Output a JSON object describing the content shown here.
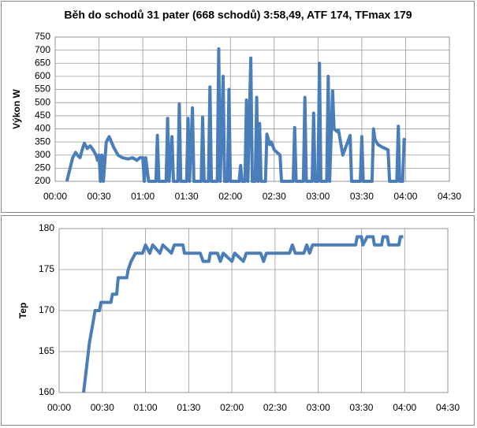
{
  "chart_data": [
    {
      "type": "line",
      "title": "Běh do schodů 31 pater (668 schodů) 3:58,49, ATF 174, TFmax 179",
      "y_label": "Výkon W",
      "color": "#4a7ebb",
      "grid": true,
      "x": [
        8,
        12,
        14,
        16,
        17,
        19,
        20,
        22,
        24,
        26,
        28,
        29,
        30,
        31,
        32,
        33,
        35,
        37,
        40,
        43,
        46,
        50,
        53,
        56,
        58,
        60,
        61,
        62,
        64,
        66,
        67,
        69,
        70,
        71,
        76,
        77,
        78,
        80,
        81,
        84,
        85,
        86,
        90,
        91,
        92,
        94,
        95,
        100,
        101,
        102,
        105,
        106,
        107,
        111,
        112,
        113,
        115,
        116,
        118,
        119,
        120,
        126,
        127,
        128,
        130,
        131,
        132,
        134,
        135,
        137,
        138,
        139,
        140,
        141,
        144,
        145,
        147,
        148,
        150,
        154,
        155,
        163,
        164,
        165,
        170,
        171,
        172,
        176,
        177,
        178,
        180,
        181,
        182,
        186,
        187,
        188,
        190,
        191,
        193,
        194,
        197,
        202,
        203,
        209,
        210,
        211,
        217,
        218,
        219,
        221,
        224,
        228,
        229,
        234,
        235,
        236,
        238,
        239,
        240
      ],
      "values": [
        200,
        290,
        310,
        295,
        290,
        330,
        345,
        325,
        335,
        320,
        300,
        280,
        300,
        200,
        300,
        200,
        350,
        370,
        330,
        300,
        290,
        285,
        290,
        280,
        290,
        290,
        200,
        290,
        200,
        200,
        200,
        200,
        375,
        200,
        200,
        440,
        200,
        370,
        200,
        200,
        495,
        200,
        200,
        440,
        200,
        480,
        200,
        200,
        445,
        200,
        200,
        560,
        200,
        200,
        705,
        200,
        600,
        200,
        200,
        550,
        200,
        200,
        260,
        200,
        200,
        510,
        200,
        670,
        200,
        200,
        520,
        200,
        420,
        200,
        200,
        380,
        340,
        350,
        320,
        300,
        200,
        200,
        405,
        200,
        200,
        520,
        200,
        200,
        460,
        200,
        200,
        650,
        200,
        200,
        600,
        200,
        545,
        400,
        390,
        395,
        300,
        375,
        200,
        200,
        370,
        200,
        200,
        400,
        360,
        340,
        330,
        320,
        200,
        200,
        410,
        200,
        200,
        360,
        355
      ],
      "xlim": [
        0,
        270
      ],
      "xticks": [
        {
          "value": 0,
          "label": "00:00"
        },
        {
          "value": 30,
          "label": "00:30"
        },
        {
          "value": 60,
          "label": "01:00"
        },
        {
          "value": 90,
          "label": "01:30"
        },
        {
          "value": 120,
          "label": "02:00"
        },
        {
          "value": 150,
          "label": "02:30"
        },
        {
          "value": 180,
          "label": "03:00"
        },
        {
          "value": 210,
          "label": "03:30"
        },
        {
          "value": 240,
          "label": "04:00"
        },
        {
          "value": 270,
          "label": "04:30"
        }
      ],
      "ylim": [
        200,
        750
      ],
      "yticks": [
        200,
        250,
        300,
        350,
        400,
        450,
        500,
        550,
        600,
        650,
        700,
        750
      ]
    },
    {
      "type": "line",
      "y_label": "Tep",
      "color": "#4a7ebb",
      "grid": true,
      "x": [
        17,
        19,
        21,
        23,
        25,
        28,
        29,
        36,
        37,
        40,
        41,
        47,
        48,
        50,
        53,
        58,
        60,
        63,
        65,
        70,
        72,
        78,
        80,
        86,
        87,
        98,
        100,
        104,
        105,
        110,
        112,
        114,
        120,
        122,
        128,
        130,
        140,
        142,
        144,
        160,
        162,
        164,
        170,
        172,
        174,
        176,
        206,
        207,
        210,
        211,
        214,
        218,
        219,
        224,
        225,
        228,
        229,
        236,
        237,
        239
      ],
      "values": [
        160,
        163,
        166,
        168,
        170,
        170,
        171,
        171,
        172,
        172,
        174,
        174,
        175,
        176,
        177,
        177,
        178,
        177,
        178,
        177,
        178,
        177,
        178,
        178,
        177,
        177,
        176,
        176,
        177,
        177,
        176,
        177,
        176,
        177,
        176,
        177,
        177,
        176,
        177,
        177,
        178,
        177,
        177,
        178,
        177,
        178,
        178,
        179,
        179,
        178,
        179,
        179,
        178,
        178,
        179,
        179,
        178,
        178,
        179,
        179
      ],
      "xlim": [
        0,
        270
      ],
      "xticks": [
        {
          "value": 0,
          "label": "00:00"
        },
        {
          "value": 30,
          "label": "00:30"
        },
        {
          "value": 60,
          "label": "01:00"
        },
        {
          "value": 90,
          "label": "01:30"
        },
        {
          "value": 120,
          "label": "02:00"
        },
        {
          "value": 150,
          "label": "02:30"
        },
        {
          "value": 180,
          "label": "03:00"
        },
        {
          "value": 210,
          "label": "03:30"
        },
        {
          "value": 240,
          "label": "04:00"
        },
        {
          "value": 270,
          "label": "04:30"
        }
      ],
      "ylim": [
        160,
        180
      ],
      "yticks": [
        160,
        165,
        170,
        175,
        180
      ]
    }
  ]
}
